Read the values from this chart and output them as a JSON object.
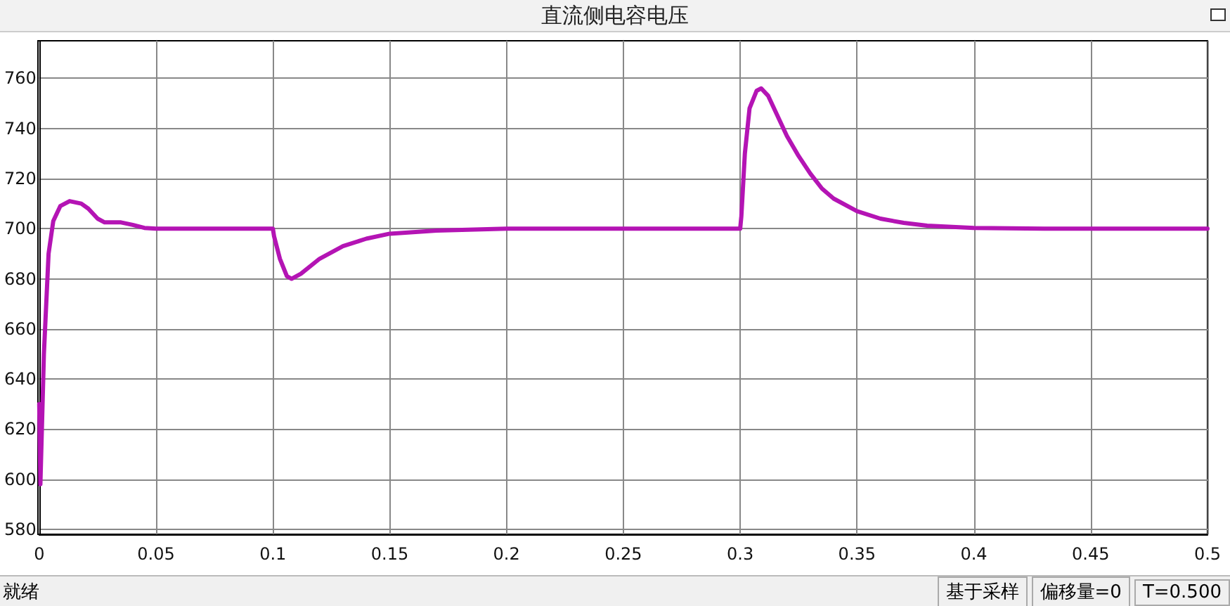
{
  "chart_data": {
    "type": "line",
    "title": "直流侧电容电压",
    "x": [
      0,
      0.0005,
      0.002,
      0.004,
      0.006,
      0.009,
      0.013,
      0.018,
      0.021,
      0.025,
      0.028,
      0.035,
      0.04,
      0.045,
      0.05,
      0.1,
      0.1005,
      0.103,
      0.106,
      0.108,
      0.112,
      0.12,
      0.13,
      0.14,
      0.15,
      0.17,
      0.2,
      0.3,
      0.3005,
      0.302,
      0.304,
      0.307,
      0.309,
      0.312,
      0.316,
      0.32,
      0.325,
      0.33,
      0.335,
      0.34,
      0.35,
      0.36,
      0.37,
      0.38,
      0.4,
      0.43,
      0.5
    ],
    "series": [
      {
        "color": "#b414b4",
        "values": [
          630,
          598,
          650,
          690,
          703,
          709,
          711,
          710,
          708,
          704,
          702.5,
          702.5,
          701.5,
          700.3,
          700,
          700,
          697,
          688,
          681,
          680,
          682,
          688,
          693,
          696,
          698,
          699.2,
          700,
          700,
          705,
          730,
          748,
          755,
          756,
          753,
          745,
          737,
          729,
          722,
          716,
          712,
          707,
          704,
          702.3,
          701.2,
          700.3,
          700,
          700
        ]
      }
    ],
    "xlim": [
      0,
      0.5
    ],
    "xticks": [
      0,
      0.05,
      0.1,
      0.15,
      0.2,
      0.25,
      0.3,
      0.35,
      0.4,
      0.45,
      0.5
    ],
    "ylim": [
      578,
      775
    ],
    "yticks": [
      580,
      600,
      620,
      640,
      660,
      680,
      700,
      720,
      740,
      760
    ],
    "grid": true,
    "marker": "none",
    "line_style": "solid",
    "annotations": [
      "就绪",
      "基于采样",
      "偏移量=0",
      "T=0.500"
    ]
  }
}
